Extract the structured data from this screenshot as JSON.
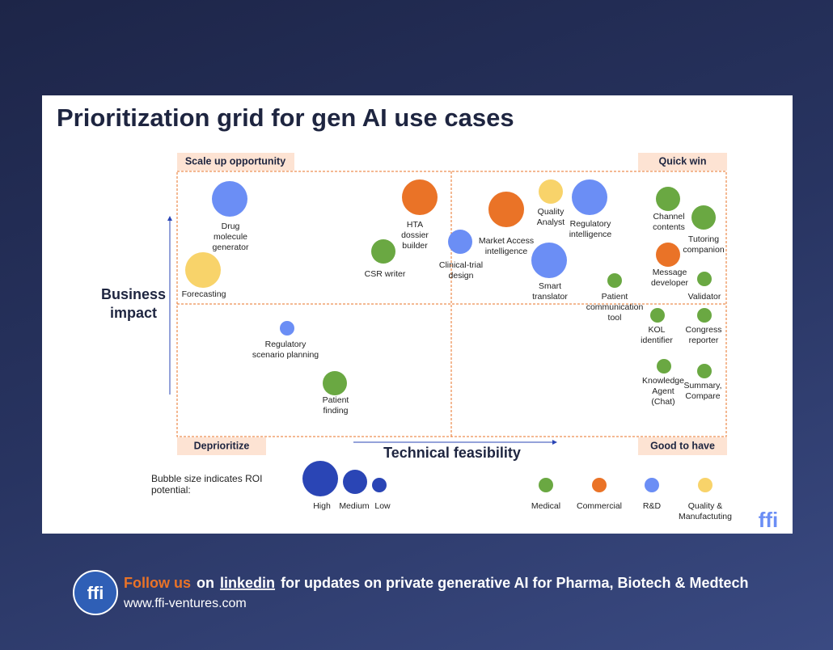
{
  "title": "Prioritization grid for gen AI use cases",
  "quadrants": {
    "top_left": "Scale up opportunity",
    "top_right": "Quick win",
    "bottom_left": "Deprioritize",
    "bottom_right": "Good to have"
  },
  "y_axis_label": [
    "Business",
    "impact"
  ],
  "x_axis_label": "Technical feasibility",
  "nodes": [
    {
      "label": [
        "Drug",
        "molecule",
        "generator"
      ],
      "group": "R&D",
      "roi": "High"
    },
    {
      "label": [
        "Forecasting"
      ],
      "group": "Quality & Manufactuting",
      "roi": "High"
    },
    {
      "label": [
        "HTA",
        "dossier",
        "builder"
      ],
      "group": "Commercial",
      "roi": "High"
    },
    {
      "label": [
        "CSR writer"
      ],
      "group": "Medical",
      "roi": "Medium"
    },
    {
      "label": [
        "Clinical-trial",
        "design"
      ],
      "group": "R&D",
      "roi": "Medium"
    },
    {
      "label": [
        "Market Access",
        "intelligence"
      ],
      "group": "Commercial",
      "roi": "High"
    },
    {
      "label": [
        "Quality",
        "Analyst"
      ],
      "group": "Quality & Manufactuting",
      "roi": "Medium"
    },
    {
      "label": [
        "Regulatory",
        "intelligence"
      ],
      "group": "R&D",
      "roi": "High"
    },
    {
      "label": [
        "Smart",
        "translator"
      ],
      "group": "R&D",
      "roi": "High"
    },
    {
      "label": [
        "Channel",
        "contents"
      ],
      "group": "Medical",
      "roi": "Medium"
    },
    {
      "label": [
        "Tutoring",
        "companion"
      ],
      "group": "Medical",
      "roi": "Medium"
    },
    {
      "label": [
        "Message",
        "developer"
      ],
      "group": "Commercial",
      "roi": "Medium"
    },
    {
      "label": [
        "Patient",
        "communication",
        "tool"
      ],
      "group": "Medical",
      "roi": "Low"
    },
    {
      "label": [
        "Validator"
      ],
      "group": "Medical",
      "roi": "Low"
    },
    {
      "label": [
        "KOL",
        "identifier"
      ],
      "group": "Medical",
      "roi": "Low"
    },
    {
      "label": [
        "Congress",
        "reporter"
      ],
      "group": "Medical",
      "roi": "Low"
    },
    {
      "label": [
        "Regulatory",
        "scenario planning"
      ],
      "group": "R&D",
      "roi": "Low"
    },
    {
      "label": [
        "Patient",
        "finding"
      ],
      "group": "Medical",
      "roi": "Medium"
    },
    {
      "label": [
        "Knowledge",
        "Agent",
        "(Chat)"
      ],
      "group": "Medical",
      "roi": "Low"
    },
    {
      "label": [
        "Summary,",
        "Compare"
      ],
      "group": "Medical",
      "roi": "Low"
    }
  ],
  "roi_legend": {
    "caption": [
      "Bubble size indicates ROI",
      "potential:"
    ],
    "levels": [
      "High",
      "Medium",
      "Low"
    ],
    "color": "#2a45b5"
  },
  "groups": [
    {
      "name": [
        "Medical"
      ],
      "color": "#6aa842"
    },
    {
      "name": [
        "Commercial"
      ],
      "color": "#ea7327"
    },
    {
      "name": [
        "R&D"
      ],
      "color": "#6b8ef5"
    },
    {
      "name": [
        "Quality &",
        "Manufactuting"
      ],
      "color": "#f8d36a"
    }
  ],
  "logo": "ffi",
  "footer": {
    "parts": [
      "Follow us",
      "on",
      "linkedin",
      "for updates on private generative AI for Pharma, Biotech & Medtech"
    ],
    "url": "www.ffi-ventures.com"
  }
}
